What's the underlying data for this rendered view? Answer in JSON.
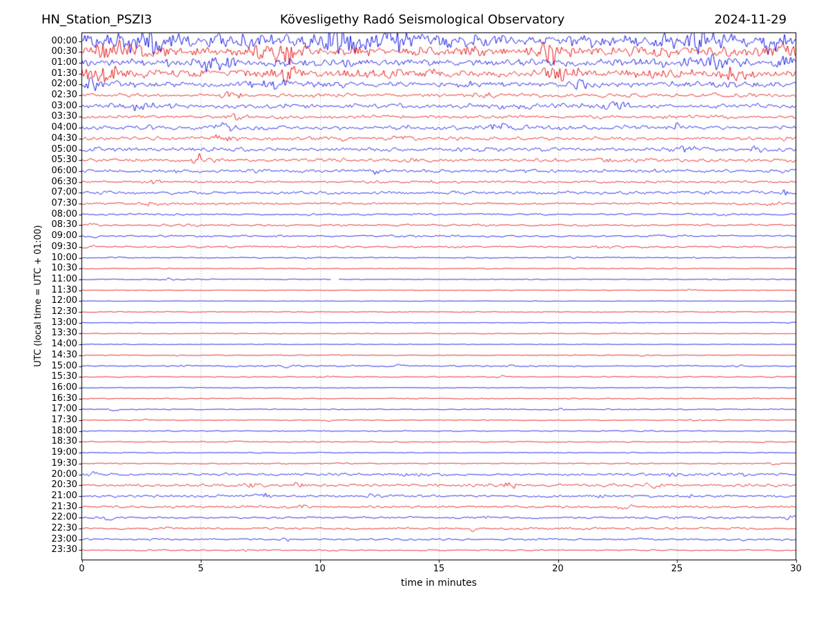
{
  "header": {
    "station": "HN_Station_PSZI3",
    "observatory": "Kövesligethy Radó Seismological Observatory",
    "date": "2024-11-29"
  },
  "chart_data": {
    "type": "line",
    "subtype": "helicorder-drum-plot",
    "title": "HN_Station_PSZI3 — Kövesligethy Radó Seismological Observatory — 2024-11-29",
    "xlabel": "time in minutes",
    "ylabel": "UTC (local time = UTC + 01:00)",
    "xlim": [
      0,
      30
    ],
    "x_ticks": [
      "0",
      "5",
      "10",
      "15",
      "20",
      "25",
      "30"
    ],
    "x_tick_values": [
      0,
      5,
      10,
      15,
      20,
      25,
      30
    ],
    "grid": {
      "vertical_dotted_minutes": [
        5,
        10,
        15,
        20,
        25
      ],
      "horizontal": false
    },
    "legend": "none",
    "minutes_per_row": 30,
    "colors": {
      "hour_trace": "#0000e6",
      "half_hour_trace": "#e60000",
      "grid": "#8a8a8a",
      "axis": "#000000",
      "background": "#ffffff"
    },
    "amplitude_unit": "relative (px of drum deflection)",
    "rows": [
      {
        "time": "00:00",
        "color": "blue",
        "amplitude": 12.5,
        "bursts": [
          [
            2.5,
            1.5,
            0.8
          ],
          [
            10.7,
            1.8,
            0.5
          ],
          [
            13.0,
            1.8,
            0.4
          ],
          [
            25.9,
            1.8,
            0.4
          ],
          [
            29.0,
            1.5,
            0.3
          ]
        ]
      },
      {
        "time": "00:30",
        "color": "red",
        "amplitude": 9.0,
        "bursts": [
          [
            1.5,
            1.6,
            0.6
          ],
          [
            8.7,
            1.8,
            0.5
          ],
          [
            20.0,
            1.3,
            0.5
          ],
          [
            29.3,
            1.5,
            0.3
          ]
        ]
      },
      {
        "time": "01:00",
        "color": "blue",
        "amplitude": 6.5,
        "bursts": [
          [
            5.6,
            1.5,
            0.5
          ],
          [
            26.4,
            1.8,
            0.5
          ],
          [
            29.5,
            1.6,
            0.25
          ]
        ]
      },
      {
        "time": "01:30",
        "color": "red",
        "amplitude": 7.5,
        "bursts": [
          [
            0.9,
            1.8,
            0.5
          ],
          [
            8.6,
            1.4,
            0.4
          ],
          [
            19.8,
            1.6,
            0.3
          ],
          [
            27.5,
            1.4,
            0.4
          ]
        ]
      },
      {
        "time": "02:00",
        "color": "blue",
        "amplitude": 5.0,
        "bursts": [
          [
            0.5,
            1.6,
            0.5
          ],
          [
            8.0,
            1.3,
            0.6
          ],
          [
            21.0,
            1.3,
            0.5
          ]
        ]
      },
      {
        "time": "02:30",
        "color": "red",
        "amplitude": 3.2,
        "bursts": [
          [
            6.3,
            1.4,
            0.4
          ],
          [
            17.0,
            1.3,
            0.4
          ]
        ]
      },
      {
        "time": "03:00",
        "color": "blue",
        "amplitude": 4.2,
        "bursts": [
          [
            2.0,
            1.3,
            0.5
          ],
          [
            22.5,
            1.3,
            0.4
          ]
        ]
      },
      {
        "time": "03:30",
        "color": "red",
        "amplitude": 2.8,
        "bursts": [
          [
            6.5,
            1.5,
            0.3
          ]
        ]
      },
      {
        "time": "04:00",
        "color": "blue",
        "amplitude": 3.8,
        "bursts": [
          [
            6.0,
            1.4,
            0.3
          ],
          [
            17.5,
            1.4,
            0.3
          ],
          [
            25.0,
            1.3,
            0.3
          ]
        ]
      },
      {
        "time": "04:30",
        "color": "red",
        "amplitude": 3.2,
        "bursts": [
          [
            5.9,
            1.4,
            0.3
          ],
          [
            13.5,
            1.3,
            0.3
          ]
        ]
      },
      {
        "time": "05:00",
        "color": "blue",
        "amplitude": 3.8,
        "bursts": [
          [
            25.5,
            1.4,
            0.4
          ],
          [
            28.0,
            1.3,
            0.3
          ]
        ]
      },
      {
        "time": "05:30",
        "color": "red",
        "amplitude": 3.0,
        "bursts": [
          [
            4.9,
            3.2,
            0.16
          ],
          [
            22.0,
            1.3,
            0.3
          ]
        ]
      },
      {
        "time": "06:00",
        "color": "blue",
        "amplitude": 2.8,
        "bursts": [
          [
            12.3,
            1.6,
            0.25
          ]
        ]
      },
      {
        "time": "06:30",
        "color": "red",
        "amplitude": 2.0,
        "bursts": [
          [
            3.1,
            1.8,
            0.15
          ],
          [
            14.7,
            1.5,
            0.2
          ],
          [
            26.5,
            1.4,
            0.2
          ]
        ]
      },
      {
        "time": "07:00",
        "color": "blue",
        "amplitude": 2.6,
        "bursts": [
          [
            29.6,
            2.2,
            0.2
          ]
        ]
      },
      {
        "time": "07:30",
        "color": "red",
        "amplitude": 2.0,
        "bursts": [
          [
            2.9,
            1.8,
            0.15
          ],
          [
            28.9,
            1.4,
            0.2
          ]
        ]
      },
      {
        "time": "08:00",
        "color": "blue",
        "amplitude": 1.5,
        "bursts": [
          [
            27.0,
            1.4,
            0.3
          ]
        ]
      },
      {
        "time": "08:30",
        "color": "red",
        "amplitude": 1.7,
        "bursts": [
          [
            0.5,
            1.6,
            0.2
          ]
        ]
      },
      {
        "time": "09:00",
        "color": "blue",
        "amplitude": 1.7,
        "bursts": [
          [
            0.5,
            1.5,
            0.2
          ],
          [
            15.0,
            1.4,
            0.3
          ]
        ]
      },
      {
        "time": "09:30",
        "color": "red",
        "amplitude": 1.7,
        "bursts": [
          [
            0.4,
            1.5,
            0.2
          ],
          [
            22.0,
            1.3,
            0.3
          ]
        ]
      },
      {
        "time": "10:00",
        "color": "blue",
        "amplitude": 0.85,
        "bursts": [
          [
            1.5,
            1.7,
            0.15
          ],
          [
            9.5,
            1.6,
            0.2
          ],
          [
            20.5,
            1.8,
            0.3
          ],
          [
            25.8,
            2.2,
            0.12
          ]
        ]
      },
      {
        "time": "10:30",
        "color": "red",
        "amplitude": 0.75,
        "bursts": [
          [
            9.6,
            1.8,
            0.2
          ]
        ]
      },
      {
        "time": "11:00",
        "color": "blue",
        "amplitude": 0.8,
        "bursts": [
          [
            3.6,
            1.8,
            0.4
          ],
          [
            4.8,
            1.5,
            0.3
          ]
        ],
        "gap": [
          10.45,
          10.8
        ]
      },
      {
        "time": "11:30",
        "color": "red",
        "amplitude": 0.6,
        "bursts": [
          [
            25.6,
            1.8,
            0.15
          ]
        ]
      },
      {
        "time": "12:00",
        "color": "blue",
        "amplitude": 0.5,
        "bursts": []
      },
      {
        "time": "12:30",
        "color": "red",
        "amplitude": 0.75,
        "bursts": []
      },
      {
        "time": "13:00",
        "color": "blue",
        "amplitude": 0.5,
        "bursts": [
          [
            29.7,
            2.0,
            0.15
          ]
        ]
      },
      {
        "time": "13:30",
        "color": "red",
        "amplitude": 0.7,
        "bursts": []
      },
      {
        "time": "14:00",
        "color": "blue",
        "amplitude": 0.5,
        "bursts": []
      },
      {
        "time": "14:30",
        "color": "red",
        "amplitude": 0.8,
        "bursts": [
          [
            4.0,
            1.6,
            0.2
          ],
          [
            23.6,
            1.8,
            0.15
          ]
        ]
      },
      {
        "time": "15:00",
        "color": "blue",
        "amplitude": 1.1,
        "bursts": [
          [
            4.3,
            2.0,
            0.3
          ],
          [
            8.8,
            2.2,
            0.35
          ],
          [
            13.3,
            3.0,
            0.1
          ],
          [
            18.0,
            1.6,
            0.2
          ],
          [
            27.6,
            1.8,
            0.25
          ]
        ]
      },
      {
        "time": "15:30",
        "color": "red",
        "amplitude": 0.9,
        "bursts": [
          [
            10.4,
            1.6,
            0.2
          ],
          [
            17.6,
            1.8,
            0.2
          ]
        ]
      },
      {
        "time": "16:00",
        "color": "blue",
        "amplitude": 0.65,
        "bursts": []
      },
      {
        "time": "16:30",
        "color": "red",
        "amplitude": 0.95,
        "bursts": []
      },
      {
        "time": "17:00",
        "color": "blue",
        "amplitude": 0.9,
        "bursts": [
          [
            1.4,
            2.2,
            0.25
          ],
          [
            20.0,
            2.0,
            0.2
          ]
        ]
      },
      {
        "time": "17:30",
        "color": "red",
        "amplitude": 0.8,
        "bursts": [
          [
            2.7,
            4.0,
            0.06
          ],
          [
            10.3,
            1.6,
            0.2
          ],
          [
            25.5,
            1.5,
            0.3
          ]
        ]
      },
      {
        "time": "18:00",
        "color": "blue",
        "amplitude": 0.9,
        "bursts": [
          [
            10.2,
            2.0,
            0.15
          ]
        ]
      },
      {
        "time": "18:30",
        "color": "red",
        "amplitude": 0.9,
        "bursts": [
          [
            6.6,
            1.8,
            0.15
          ]
        ]
      },
      {
        "time": "19:00",
        "color": "blue",
        "amplitude": 0.8,
        "bursts": []
      },
      {
        "time": "19:30",
        "color": "red",
        "amplitude": 1.0,
        "bursts": [
          [
            29.0,
            1.8,
            0.2
          ]
        ]
      },
      {
        "time": "20:00",
        "color": "blue",
        "amplitude": 2.1,
        "bursts": [
          [
            0.4,
            1.8,
            0.2
          ],
          [
            14.0,
            1.6,
            0.3
          ],
          [
            25.0,
            1.4,
            0.3
          ],
          [
            27.6,
            2.0,
            0.25
          ]
        ]
      },
      {
        "time": "20:30",
        "color": "red",
        "amplitude": 2.5,
        "bursts": [
          [
            7.2,
            1.6,
            0.3
          ],
          [
            9.1,
            1.6,
            0.25
          ],
          [
            18.0,
            1.5,
            0.3
          ],
          [
            24.0,
            1.4,
            0.3
          ]
        ]
      },
      {
        "time": "21:00",
        "color": "blue",
        "amplitude": 2.1,
        "bursts": [
          [
            7.7,
            1.7,
            0.25
          ],
          [
            12.0,
            1.5,
            0.3
          ],
          [
            21.8,
            1.5,
            0.3
          ],
          [
            25.6,
            1.6,
            0.25
          ]
        ]
      },
      {
        "time": "21:30",
        "color": "red",
        "amplitude": 2.1,
        "bursts": [
          [
            9.3,
            1.5,
            0.25
          ],
          [
            22.8,
            1.4,
            0.3
          ]
        ]
      },
      {
        "time": "22:00",
        "color": "blue",
        "amplitude": 1.9,
        "bursts": [
          [
            1.0,
            1.5,
            0.3
          ],
          [
            17.0,
            1.5,
            0.3
          ],
          [
            24.6,
            1.5,
            0.3
          ],
          [
            29.8,
            1.8,
            0.15
          ]
        ]
      },
      {
        "time": "22:30",
        "color": "red",
        "amplitude": 1.9,
        "bursts": [
          [
            3.5,
            1.6,
            0.25
          ],
          [
            16.4,
            1.6,
            0.25
          ]
        ]
      },
      {
        "time": "23:00",
        "color": "blue",
        "amplitude": 1.8,
        "bursts": [
          [
            8.6,
            1.7,
            0.25
          ]
        ]
      },
      {
        "time": "23:30",
        "color": "red",
        "amplitude": 1.1,
        "bursts": [
          [
            2.3,
            1.8,
            0.2
          ],
          [
            7.0,
            1.4,
            0.3
          ],
          [
            10.5,
            1.3,
            0.3
          ]
        ]
      }
    ]
  }
}
